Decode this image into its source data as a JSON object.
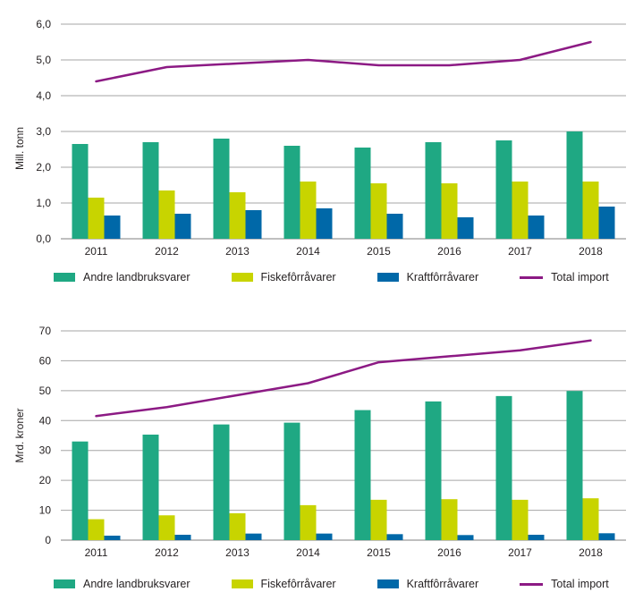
{
  "colors": {
    "background": "#ffffff",
    "grid": "#a6a6a6",
    "axis": "#7f7f7f",
    "text": "#231f20",
    "green": "#1fa883",
    "yellow_green": "#c8d400",
    "blue": "#0068a8",
    "purple": "#8c1a84"
  },
  "legend": {
    "items": [
      {
        "label": "Andre landbruksvarer",
        "color": "#1fa883",
        "swatch": "bar"
      },
      {
        "label": "Fiskefôrråvarer",
        "color": "#c8d400",
        "swatch": "bar"
      },
      {
        "label": "Kraftfôrråvarer",
        "color": "#0068a8",
        "swatch": "bar"
      },
      {
        "label": "Total import",
        "color": "#8c1a84",
        "swatch": "line"
      }
    ]
  },
  "chart_data": [
    {
      "type": "bar",
      "title": "",
      "xlabel": "",
      "ylabel": "Mill. tonn",
      "ylim": [
        0,
        6
      ],
      "grid": true,
      "legend_position": "bottom",
      "categories": [
        "2011",
        "2012",
        "2013",
        "2014",
        "2015",
        "2016",
        "2017",
        "2018"
      ],
      "yticks": [
        {
          "v": 0,
          "label": "0,0"
        },
        {
          "v": 1,
          "label": "1,0"
        },
        {
          "v": 2,
          "label": "2,0"
        },
        {
          "v": 3,
          "label": "3,0"
        },
        {
          "v": 4,
          "label": "4,0"
        },
        {
          "v": 5,
          "label": "5,0"
        },
        {
          "v": 6,
          "label": "6,0"
        }
      ],
      "series": [
        {
          "id": "andre-landbruksvarer",
          "name": "Andre landbruksvarer",
          "kind": "bar",
          "color": "#1fa883",
          "values": [
            2.65,
            2.7,
            2.8,
            2.6,
            2.55,
            2.7,
            2.75,
            3.0
          ]
        },
        {
          "id": "fiskeforravarer",
          "name": "Fiskefôrråvarer",
          "kind": "bar",
          "color": "#c8d400",
          "values": [
            1.15,
            1.35,
            1.3,
            1.6,
            1.55,
            1.55,
            1.6,
            1.6
          ]
        },
        {
          "id": "kraftforravarer",
          "name": "Kraftfôrråvarer",
          "kind": "bar",
          "color": "#0068a8",
          "values": [
            0.65,
            0.7,
            0.8,
            0.85,
            0.7,
            0.6,
            0.65,
            0.9
          ]
        },
        {
          "id": "total-import",
          "name": "Total import",
          "kind": "line",
          "color": "#8c1a84",
          "values": [
            4.4,
            4.8,
            4.9,
            5.0,
            4.85,
            4.85,
            5.0,
            5.5
          ]
        }
      ]
    },
    {
      "type": "bar",
      "title": "",
      "xlabel": "",
      "ylabel": "Mrd. kroner",
      "ylim": [
        0,
        70
      ],
      "grid": true,
      "legend_position": "bottom",
      "categories": [
        "2011",
        "2012",
        "2013",
        "2014",
        "2015",
        "2016",
        "2017",
        "2018"
      ],
      "yticks": [
        {
          "v": 0,
          "label": "0"
        },
        {
          "v": 10,
          "label": "10"
        },
        {
          "v": 20,
          "label": "20"
        },
        {
          "v": 30,
          "label": "30"
        },
        {
          "v": 40,
          "label": "40"
        },
        {
          "v": 50,
          "label": "50"
        },
        {
          "v": 60,
          "label": "60"
        },
        {
          "v": 70,
          "label": "70"
        }
      ],
      "series": [
        {
          "id": "andre-landbruksvarer",
          "name": "Andre landbruksvarer",
          "kind": "bar",
          "color": "#1fa883",
          "values": [
            33,
            35.3,
            38.7,
            39.3,
            43.5,
            46.4,
            48.2,
            49.9
          ]
        },
        {
          "id": "fiskeforravarer",
          "name": "Fiskefôrråvarer",
          "kind": "bar",
          "color": "#c8d400",
          "values": [
            7,
            8.3,
            9,
            11.7,
            13.5,
            13.7,
            13.5,
            14
          ]
        },
        {
          "id": "kraftforravarer",
          "name": "Kraftfôrråvarer",
          "kind": "bar",
          "color": "#0068a8",
          "values": [
            1.5,
            1.8,
            2.2,
            2.2,
            2.0,
            1.7,
            1.8,
            2.3
          ]
        },
        {
          "id": "total-import",
          "name": "Total import",
          "kind": "line",
          "color": "#8c1a84",
          "values": [
            41.5,
            44.5,
            48.5,
            52.5,
            59.5,
            61.5,
            63.5,
            66.8
          ]
        }
      ]
    }
  ]
}
